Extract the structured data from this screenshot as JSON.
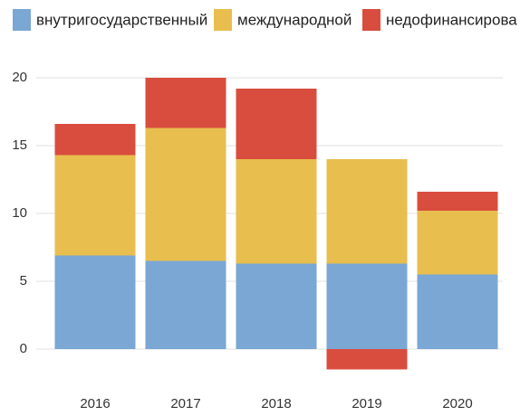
{
  "chart_data": {
    "type": "stacked-bar",
    "categories": [
      "2016",
      "2017",
      "2018",
      "2019",
      "2020"
    ],
    "series": [
      {
        "name": "внутригосударственный",
        "color": "#7aa7d4",
        "values": [
          6.9,
          6.5,
          6.3,
          6.3,
          5.5
        ]
      },
      {
        "name": "международной",
        "color": "#e8be4e",
        "values": [
          7.4,
          9.8,
          7.7,
          7.7,
          4.7
        ]
      },
      {
        "name": "недофинансирова",
        "color": "#d94d3e",
        "values": [
          2.3,
          3.7,
          5.2,
          -1.5,
          1.4
        ]
      }
    ],
    "ylim": [
      -2,
      20
    ],
    "yticks": [
      0,
      5,
      10,
      15,
      20
    ],
    "grid": true,
    "legend": "top"
  }
}
